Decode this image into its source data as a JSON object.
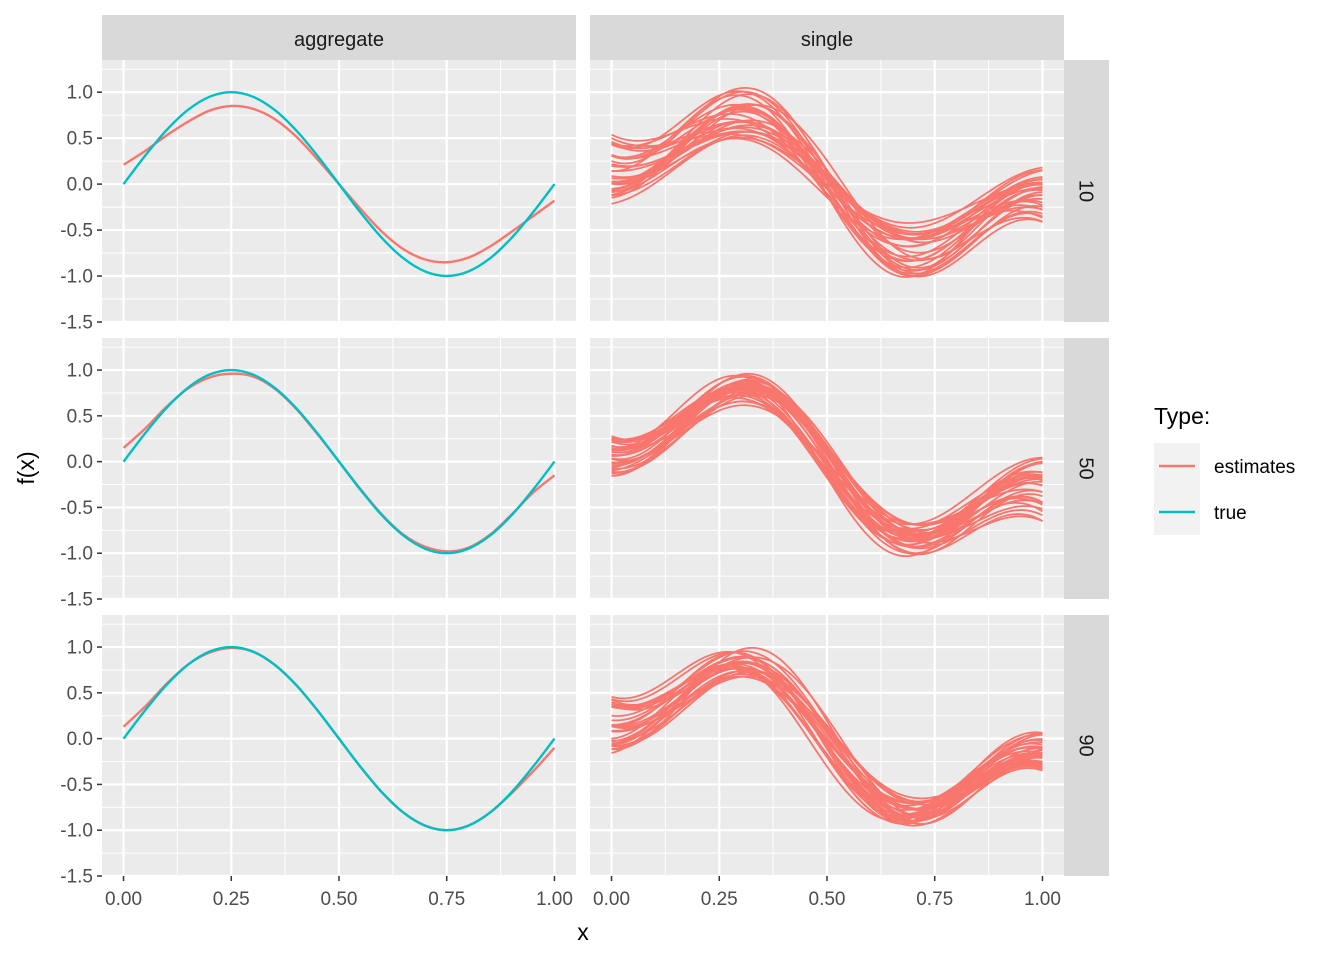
{
  "chart_data": {
    "type": "line",
    "layout": "facet-grid",
    "xlabel": "x",
    "ylabel": "f(x)",
    "column_facets": [
      "aggregate",
      "single"
    ],
    "row_facets": [
      "10",
      "50",
      "90"
    ],
    "xlim": [
      -0.05,
      1.05
    ],
    "ylim": [
      -1.5,
      1.35
    ],
    "x_ticks": [
      0.0,
      0.25,
      0.5,
      0.75,
      1.0
    ],
    "x_tick_labels": [
      "0.00",
      "0.25",
      "0.50",
      "0.75",
      "1.00"
    ],
    "y_ticks": [
      -1.5,
      -1.0,
      -0.5,
      0.0,
      0.5,
      1.0
    ],
    "y_tick_labels": [
      "-1.5",
      "-1.0",
      "-0.5",
      "0.0",
      "0.5",
      "1.0"
    ],
    "grid": true,
    "legend": {
      "title": "Type:",
      "position": "right",
      "entries": [
        {
          "name": "estimates",
          "color": "#F8766D"
        },
        {
          "name": "true",
          "color": "#00BFC4"
        }
      ]
    },
    "x": [
      0.0,
      0.05,
      0.1,
      0.15,
      0.2,
      0.25,
      0.3,
      0.35,
      0.4,
      0.45,
      0.5,
      0.55,
      0.6,
      0.65,
      0.7,
      0.75,
      0.8,
      0.85,
      0.9,
      0.95,
      1.0
    ],
    "true_function": "sin(2*pi*x)",
    "aggregate_series": [
      {
        "row": "10",
        "name": "estimates",
        "values": [
          0.21,
          0.36,
          0.53,
          0.68,
          0.8,
          0.85,
          0.82,
          0.71,
          0.52,
          0.27,
          0.0,
          -0.27,
          -0.52,
          -0.71,
          -0.82,
          -0.85,
          -0.8,
          -0.68,
          -0.52,
          -0.35,
          -0.18
        ]
      },
      {
        "row": "10",
        "name": "true",
        "values": [
          0.0,
          0.309,
          0.588,
          0.809,
          0.951,
          1.0,
          0.951,
          0.809,
          0.588,
          0.309,
          0.0,
          -0.309,
          -0.588,
          -0.809,
          -0.951,
          -1.0,
          -0.951,
          -0.809,
          -0.588,
          -0.309,
          0.0
        ]
      },
      {
        "row": "50",
        "name": "estimates",
        "values": [
          0.15,
          0.36,
          0.6,
          0.8,
          0.92,
          0.96,
          0.93,
          0.8,
          0.58,
          0.3,
          0.0,
          -0.3,
          -0.58,
          -0.8,
          -0.93,
          -0.98,
          -0.94,
          -0.8,
          -0.58,
          -0.34,
          -0.15
        ]
      },
      {
        "row": "50",
        "name": "true",
        "values": [
          0.0,
          0.309,
          0.588,
          0.809,
          0.951,
          1.0,
          0.951,
          0.809,
          0.588,
          0.309,
          0.0,
          -0.309,
          -0.588,
          -0.809,
          -0.951,
          -1.0,
          -0.951,
          -0.809,
          -0.588,
          -0.309,
          0.0
        ]
      },
      {
        "row": "90",
        "name": "estimates",
        "values": [
          0.13,
          0.35,
          0.6,
          0.81,
          0.94,
          0.99,
          0.95,
          0.81,
          0.59,
          0.31,
          0.0,
          -0.31,
          -0.59,
          -0.81,
          -0.95,
          -1.0,
          -0.95,
          -0.81,
          -0.6,
          -0.36,
          -0.1
        ]
      },
      {
        "row": "90",
        "name": "true",
        "values": [
          0.0,
          0.309,
          0.588,
          0.809,
          0.951,
          1.0,
          0.951,
          0.809,
          0.588,
          0.309,
          0.0,
          -0.309,
          -0.588,
          -0.809,
          -0.951,
          -1.0,
          -0.951,
          -0.809,
          -0.588,
          -0.309,
          0.0
        ]
      }
    ],
    "single_series": [
      {
        "row": "10",
        "name": "estimates",
        "count": 30,
        "amplitude_range": [
          0.6,
          1.3
        ],
        "start_range": [
          -0.22,
          0.55
        ],
        "end_range": [
          -0.42,
          0.2
        ]
      },
      {
        "row": "50",
        "name": "estimates",
        "count": 30,
        "amplitude_range": [
          0.85,
          1.2
        ],
        "start_range": [
          -0.17,
          0.3
        ],
        "end_range": [
          -0.68,
          0.05
        ]
      },
      {
        "row": "90",
        "name": "estimates",
        "count": 30,
        "amplitude_range": [
          0.9,
          1.2
        ],
        "start_range": [
          -0.17,
          0.48
        ],
        "end_range": [
          -0.35,
          0.08
        ]
      }
    ]
  }
}
